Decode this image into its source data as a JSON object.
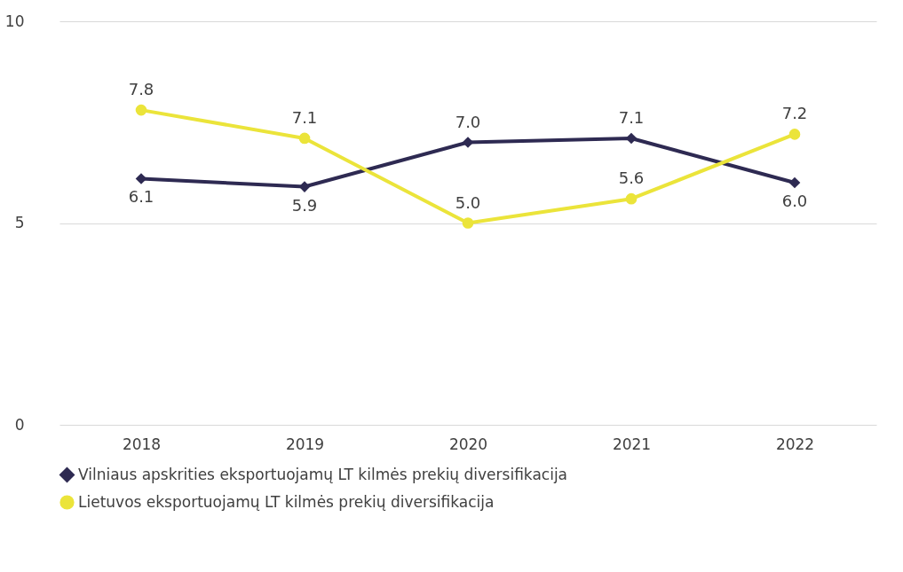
{
  "chart_data": {
    "type": "line",
    "categories": [
      "2018",
      "2019",
      "2020",
      "2021",
      "2022"
    ],
    "series": [
      {
        "name": "Vilniaus apskrities eksportuojamų LT kilmės prekių diversifikacija",
        "color": "#2e2a52",
        "marker": "diamond",
        "values": [
          6.1,
          5.9,
          7.0,
          7.1,
          6.0
        ],
        "value_labels": [
          "6.1",
          "5.9",
          "7.0",
          "7.1",
          "6.0"
        ]
      },
      {
        "name": "Lietuvos eksportuojamų LT kilmės prekių diversifikacija",
        "color": "#ebe43a",
        "marker": "circle",
        "values": [
          7.8,
          7.1,
          5.0,
          5.6,
          7.2
        ],
        "value_labels": [
          "7.8",
          "7.1",
          "5.0",
          "5.6",
          "7.2"
        ]
      }
    ],
    "ylim": [
      0,
      10
    ],
    "yticks": [
      0,
      5,
      10
    ],
    "grid": "y",
    "legend": "bottom"
  }
}
